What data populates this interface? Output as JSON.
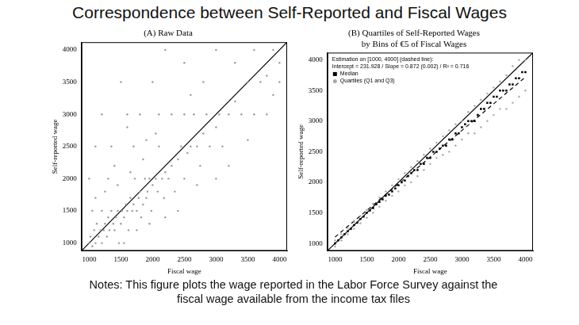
{
  "page": {
    "title": "Correspondence between Self-Reported and Fiscal Wages",
    "notes": "Notes: This figure plots the wage reported in the Labor Force Survey against the fiscal wage available from the income tax files"
  },
  "chart_data": [
    {
      "type": "scatter",
      "title": [
        "(A) Raw Data"
      ],
      "x_label": "Fiscal wage",
      "y_label": "Self-reported wage",
      "xlim": [
        880,
        4120
      ],
      "ylim": [
        880,
        4120
      ],
      "xticks": [
        1000,
        1500,
        2000,
        2500,
        3000,
        3500,
        4000
      ],
      "yticks": [
        1000,
        1500,
        2000,
        2500,
        3000,
        3500,
        4000
      ],
      "grid": false,
      "series": [
        {
          "type": "scatter",
          "marker": "circle",
          "color": "#9a9a9a",
          "values": [
            [
              1000,
              1000
            ],
            [
              1020,
              1100
            ],
            [
              1050,
              950
            ],
            [
              1080,
              1200
            ],
            [
              1100,
              1000
            ],
            [
              1120,
              1300
            ],
            [
              1150,
              1100
            ],
            [
              1180,
              1200
            ],
            [
              1200,
              1000
            ],
            [
              1200,
              1500
            ],
            [
              1230,
              1200
            ],
            [
              1250,
              1300
            ],
            [
              1280,
              1100
            ],
            [
              1300,
              1400
            ],
            [
              1320,
              1200
            ],
            [
              1350,
              1500
            ],
            [
              1380,
              1300
            ],
            [
              1400,
              1200
            ],
            [
              1420,
              1400
            ],
            [
              1450,
              1500
            ],
            [
              1470,
              1000
            ],
            [
              1500,
              1300
            ],
            [
              1520,
              1500
            ],
            [
              1550,
              1400
            ],
            [
              1580,
              1600
            ],
            [
              1600,
              1500
            ],
            [
              1620,
              1200
            ],
            [
              1650,
              1700
            ],
            [
              1680,
              1500
            ],
            [
              1700,
              1600
            ],
            [
              1720,
              2000
            ],
            [
              1750,
              1500
            ],
            [
              1780,
              1700
            ],
            [
              1800,
              1800
            ],
            [
              1820,
              1400
            ],
            [
              1850,
              1600
            ],
            [
              1880,
              2000
            ],
            [
              1900,
              1700
            ],
            [
              1920,
              1800
            ],
            [
              1950,
              2000
            ],
            [
              1980,
              1500
            ],
            [
              2000,
              1900
            ],
            [
              2050,
              2000
            ],
            [
              2080,
              1800
            ],
            [
              2100,
              2500
            ],
            [
              2150,
              2000
            ],
            [
              2180,
              1700
            ],
            [
              2200,
              2100
            ],
            [
              2250,
              2000
            ],
            [
              2300,
              2200
            ],
            [
              2350,
              1800
            ],
            [
              2400,
              2300
            ],
            [
              2450,
              2500
            ],
            [
              2500,
              2000
            ],
            [
              2550,
              2400
            ],
            [
              2600,
              2500
            ],
            [
              2650,
              3000
            ],
            [
              2700,
              2500
            ],
            [
              2750,
              2200
            ],
            [
              2800,
              2700
            ],
            [
              2850,
              3000
            ],
            [
              2900,
              2500
            ],
            [
              3000,
              2800
            ],
            [
              3050,
              3000
            ],
            [
              3100,
              2500
            ],
            [
              3200,
              3000
            ],
            [
              3300,
              3200
            ],
            [
              3400,
              3000
            ],
            [
              3500,
              3500
            ],
            [
              3600,
              3000
            ],
            [
              3700,
              3500
            ],
            [
              3800,
              3600
            ],
            [
              3900,
              4000
            ],
            [
              4000,
              3800
            ],
            [
              1000,
              2000
            ],
            [
              1100,
              2500
            ],
            [
              1200,
              3000
            ],
            [
              1300,
              2000
            ],
            [
              1500,
              3500
            ],
            [
              1600,
              2800
            ],
            [
              1800,
              3000
            ],
            [
              2000,
              3500
            ],
            [
              2200,
              4000
            ],
            [
              2500,
              3800
            ],
            [
              2800,
              3500
            ],
            [
              3000,
              4000
            ],
            [
              1400,
              2200
            ],
            [
              1700,
              2500
            ],
            [
              1900,
              2600
            ],
            [
              2100,
              3000
            ],
            [
              2300,
              3000
            ],
            [
              2600,
              3300
            ],
            [
              1050,
              1500
            ],
            [
              1250,
              1800
            ],
            [
              1450,
              1900
            ],
            [
              1650,
              2100
            ],
            [
              1850,
              2300
            ],
            [
              2400,
              1500
            ],
            [
              2700,
              1900
            ],
            [
              3000,
              2000
            ],
            [
              3200,
              2200
            ],
            [
              3500,
              2600
            ],
            [
              3800,
              3000
            ],
            [
              1550,
              1000
            ],
            [
              1750,
              1200
            ],
            [
              1950,
              1300
            ],
            [
              2200,
              1400
            ],
            [
              1100,
              1700
            ],
            [
              1350,
              2500
            ],
            [
              1600,
              3000
            ],
            [
              2050,
              2700
            ],
            [
              2500,
              3000
            ],
            [
              3300,
              3800
            ],
            [
              3600,
              4000
            ],
            [
              3900,
              3300
            ],
            [
              4000,
              3500
            ]
          ]
        },
        {
          "type": "line",
          "line_style": "solid",
          "color": "#000000",
          "values": [
            [
              880,
              880
            ],
            [
              4120,
              4120
            ]
          ]
        }
      ]
    },
    {
      "type": "scatter",
      "title": [
        "(B) Quartiles of Self-Reported Wages",
        "by Bins of €5 of Fiscal Wages"
      ],
      "x_label": "Fiscal wage",
      "y_label": "Self-reported wage",
      "xlim": [
        880,
        4120
      ],
      "ylim": [
        880,
        4120
      ],
      "xticks": [
        1000,
        1500,
        2000,
        2500,
        3000,
        3500,
        4000
      ],
      "yticks": [
        1000,
        1500,
        2000,
        2500,
        3000,
        3500,
        4000
      ],
      "grid": false,
      "legend": "upper left",
      "annotations": [
        "Estimation on [1000, 4000] (dashed line):",
        "Intercept = 231.928 / Slope = 0.872 (0.002) / R² = 0.716"
      ],
      "series": [
        {
          "name": "Median",
          "type": "scatter",
          "marker": "square",
          "color": "#000000",
          "values": [
            [
              1000,
              1000
            ],
            [
              1050,
              1050
            ],
            [
              1100,
              1100
            ],
            [
              1150,
              1150
            ],
            [
              1200,
              1200
            ],
            [
              1250,
              1240
            ],
            [
              1300,
              1300
            ],
            [
              1350,
              1340
            ],
            [
              1400,
              1400
            ],
            [
              1450,
              1440
            ],
            [
              1500,
              1500
            ],
            [
              1550,
              1540
            ],
            [
              1600,
              1580
            ],
            [
              1650,
              1640
            ],
            [
              1700,
              1680
            ],
            [
              1750,
              1720
            ],
            [
              1800,
              1780
            ],
            [
              1850,
              1800
            ],
            [
              1900,
              1850
            ],
            [
              1950,
              1900
            ],
            [
              2000,
              1950
            ],
            [
              2050,
              2000
            ],
            [
              2100,
              2030
            ],
            [
              2150,
              2100
            ],
            [
              2200,
              2150
            ],
            [
              2250,
              2200
            ],
            [
              2300,
              2200
            ],
            [
              2350,
              2300
            ],
            [
              2400,
              2300
            ],
            [
              2450,
              2400
            ],
            [
              2500,
              2400
            ],
            [
              2550,
              2500
            ],
            [
              2600,
              2500
            ],
            [
              2650,
              2550
            ],
            [
              2700,
              2600
            ],
            [
              2750,
              2600
            ],
            [
              2800,
              2700
            ],
            [
              2850,
              2700
            ],
            [
              2900,
              2800
            ],
            [
              2950,
              2800
            ],
            [
              3000,
              2900
            ],
            [
              3050,
              2950
            ],
            [
              3100,
              3000
            ],
            [
              3150,
              3000
            ],
            [
              3200,
              3000
            ],
            [
              3250,
              3100
            ],
            [
              3300,
              3200
            ],
            [
              3350,
              3200
            ],
            [
              3400,
              3300
            ],
            [
              3450,
              3300
            ],
            [
              3500,
              3400
            ],
            [
              3550,
              3400
            ],
            [
              3600,
              3500
            ],
            [
              3650,
              3500
            ],
            [
              3700,
              3500
            ],
            [
              3750,
              3600
            ],
            [
              3800,
              3600
            ],
            [
              3850,
              3700
            ],
            [
              3900,
              3700
            ],
            [
              3950,
              3800
            ],
            [
              4000,
              3800
            ]
          ]
        },
        {
          "name": "Quartiles (Q1 and Q3)",
          "type": "scatter",
          "marker": "circle",
          "color": "#a8a8a8",
          "values": [
            [
              1000,
              950
            ],
            [
              1000,
              1050
            ],
            [
              1100,
              1050
            ],
            [
              1100,
              1150
            ],
            [
              1200,
              1150
            ],
            [
              1200,
              1250
            ],
            [
              1300,
              1240
            ],
            [
              1300,
              1350
            ],
            [
              1400,
              1330
            ],
            [
              1400,
              1450
            ],
            [
              1500,
              1420
            ],
            [
              1500,
              1550
            ],
            [
              1600,
              1500
            ],
            [
              1600,
              1650
            ],
            [
              1700,
              1600
            ],
            [
              1700,
              1750
            ],
            [
              1800,
              1700
            ],
            [
              1800,
              1850
            ],
            [
              1900,
              1780
            ],
            [
              1900,
              1950
            ],
            [
              2000,
              1850
            ],
            [
              2000,
              2050
            ],
            [
              2100,
              1950
            ],
            [
              2100,
              2150
            ],
            [
              2200,
              2000
            ],
            [
              2200,
              2250
            ],
            [
              2300,
              2100
            ],
            [
              2300,
              2350
            ],
            [
              2400,
              2200
            ],
            [
              2400,
              2450
            ],
            [
              2500,
              2300
            ],
            [
              2500,
              2550
            ],
            [
              2600,
              2400
            ],
            [
              2600,
              2650
            ],
            [
              2700,
              2450
            ],
            [
              2700,
              2750
            ],
            [
              2800,
              2500
            ],
            [
              2800,
              2850
            ],
            [
              2900,
              2600
            ],
            [
              2900,
              2950
            ],
            [
              3000,
              2700
            ],
            [
              3000,
              3000
            ],
            [
              3100,
              2800
            ],
            [
              3100,
              3150
            ],
            [
              3200,
              2800
            ],
            [
              3200,
              3250
            ],
            [
              3300,
              2900
            ],
            [
              3300,
              3350
            ],
            [
              3400,
              3000
            ],
            [
              3400,
              3450
            ],
            [
              3500,
              3100
            ],
            [
              3500,
              3550
            ],
            [
              3600,
              3200
            ],
            [
              3600,
              3650
            ],
            [
              3700,
              3200
            ],
            [
              3700,
              3750
            ],
            [
              3800,
              3300
            ],
            [
              3800,
              3900
            ],
            [
              3900,
              3400
            ],
            [
              3900,
              4000
            ],
            [
              4000,
              3500
            ],
            [
              4000,
              4000
            ]
          ]
        },
        {
          "type": "line",
          "line_style": "solid",
          "color": "#000000",
          "values": [
            [
              880,
              880
            ],
            [
              4120,
              4120
            ]
          ]
        },
        {
          "type": "line",
          "line_style": "dashed",
          "color": "#000000",
          "values": [
            [
              1000,
              1103.928
            ],
            [
              4000,
              3719.928
            ]
          ]
        }
      ]
    }
  ]
}
